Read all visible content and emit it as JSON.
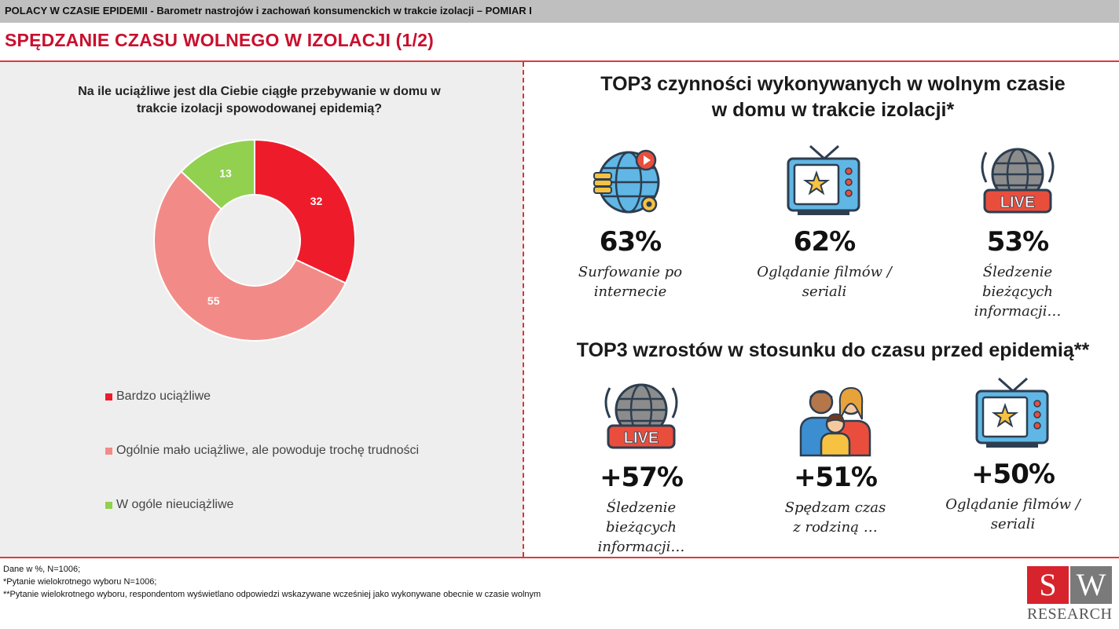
{
  "header": {
    "bar_text": "POLACY W CZASIE EPIDEMII - Barometr nastrojów i zachowań konsumenckich w trakcie izolacji – POMIAR I",
    "title": "SPĘDZANIE CZASU WOLNEGO W IZOLACJI (1/2)"
  },
  "question": "Na ile uciążliwe jest dla Ciebie ciągłe przebywanie w domu w trakcie izolacji spowodowanej epidemią?",
  "chart_data": {
    "type": "pie",
    "variant": "donut",
    "title": "Na ile uciążliwe jest dla Ciebie ciągłe przebywanie w domu w trakcie izolacji spowodowanej epidemią?",
    "categories": [
      "Bardzo uciążliwe",
      "Ogólnie mało uciążliwe, ale powoduje trochę trudności",
      "W ogóle nieuciążliwe"
    ],
    "values": [
      32,
      55,
      13
    ],
    "value_labels": [
      "32",
      "55",
      "13"
    ],
    "colors": [
      "#ee1c2b",
      "#f28b87",
      "#92d050"
    ],
    "legend_position": "bottom-left",
    "unit": "%"
  },
  "section1": {
    "title": "TOP3 czynności wykonywanych w wolnym czasie w domu w trakcie izolacji*",
    "items": [
      {
        "pct": "63%",
        "label": "Surfowanie po internecie",
        "icon": "globe-internet-icon"
      },
      {
        "pct": "62%",
        "label": "Oglądanie filmów / seriali",
        "icon": "tv-star-icon"
      },
      {
        "pct": "53%",
        "label": "Śledzenie bieżących informacji…",
        "icon": "live-globe-icon"
      }
    ]
  },
  "section2": {
    "title": "TOP3 wzrostów w stosunku do czasu przed epidemią**",
    "items": [
      {
        "pct": "+57%",
        "label": "Śledzenie bieżących informacji…",
        "icon": "live-globe-icon"
      },
      {
        "pct": "+51%",
        "label": "Spędzam czas z rodziną …",
        "icon": "family-icon"
      },
      {
        "pct": "+50%",
        "label": "Oglądanie filmów / seriali",
        "icon": "tv-star-icon"
      }
    ]
  },
  "notes": [
    "Dane w %, N=1006;",
    "*Pytanie wielokrotnego wyboru N=1006;",
    "**Pytanie wielokrotnego wyboru, respondentom wyświetlano odpowiedzi wskazywane wcześniej jako wykonywane obecnie w czasie wolnym"
  ],
  "logo": {
    "letter1": "S",
    "letter2": "W",
    "text": "RESEARCH"
  },
  "icon_text": {
    "live": "LIVE"
  },
  "colors": {
    "accent": "#c8102e",
    "panel": "#eeeeee"
  }
}
